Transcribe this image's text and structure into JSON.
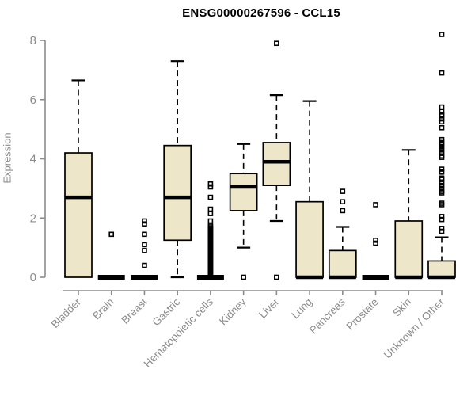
{
  "chart_data": {
    "type": "boxplot",
    "title": "ENSG00000267596 - CCL15",
    "ylabel": "Expression",
    "xlabel": "",
    "yticks": [
      0,
      2,
      4,
      6,
      8
    ],
    "ylim": [
      0,
      8.4
    ],
    "grid": false,
    "legend": "none",
    "categories": [
      "Bladder",
      "Brain",
      "Breast",
      "Gastric",
      "Hematopoietic cells",
      "Kidney",
      "Liver",
      "Lung",
      "Pancreas",
      "Prostate",
      "Skin",
      "Unknown / Other"
    ],
    "series": [
      {
        "name": "Bladder",
        "whisker_low": 0,
        "q1": 0,
        "median": 2.7,
        "q3": 4.2,
        "whisker_high": 6.65,
        "outliers": []
      },
      {
        "name": "Brain",
        "whisker_low": 0,
        "q1": 0,
        "median": 0,
        "q3": 0,
        "whisker_high": 0,
        "outliers": [
          1.45
        ]
      },
      {
        "name": "Breast",
        "whisker_low": 0,
        "q1": 0,
        "median": 0,
        "q3": 0,
        "whisker_high": 0,
        "outliers": [
          1.9,
          1.8,
          1.45,
          1.1,
          0.9,
          0.4
        ]
      },
      {
        "name": "Gastric",
        "whisker_low": 0,
        "q1": 1.25,
        "median": 2.7,
        "q3": 4.45,
        "whisker_high": 7.3,
        "outliers": []
      },
      {
        "name": "Hematopoietic cells",
        "whisker_low": 0,
        "q1": 0,
        "median": 0,
        "q3": 0,
        "whisker_high": 0,
        "outliers": [
          3.15,
          3.05,
          2.7,
          2.3,
          2.15,
          1.9,
          1.75,
          1.7,
          1.65,
          1.6,
          1.55,
          1.5,
          1.45,
          1.4,
          1.35,
          1.3,
          1.25,
          1.2,
          1.15,
          1.1,
          1.05,
          1.0,
          0.95,
          0.9,
          0.85,
          0.8,
          0.75,
          0.7,
          0.65,
          0.6,
          0.55,
          0.5,
          0.45,
          0.4,
          0.35,
          0.3,
          0.25,
          0.2,
          0.15,
          0.1,
          0.05
        ]
      },
      {
        "name": "Kidney",
        "whisker_low": 1.0,
        "q1": 2.25,
        "median": 3.05,
        "q3": 3.5,
        "whisker_high": 4.5,
        "outliers": [
          0
        ]
      },
      {
        "name": "Liver",
        "whisker_low": 1.9,
        "q1": 3.1,
        "median": 3.9,
        "q3": 4.55,
        "whisker_high": 6.15,
        "outliers": [
          7.9,
          0
        ]
      },
      {
        "name": "Lung",
        "whisker_low": 0,
        "q1": 0,
        "median": 0,
        "q3": 2.55,
        "whisker_high": 5.95,
        "outliers": []
      },
      {
        "name": "Pancreas",
        "whisker_low": 0,
        "q1": 0,
        "median": 0,
        "q3": 0.9,
        "whisker_high": 1.7,
        "outliers": [
          2.9,
          2.55,
          2.25
        ]
      },
      {
        "name": "Prostate",
        "whisker_low": 0,
        "q1": 0,
        "median": 0,
        "q3": 0,
        "whisker_high": 0,
        "outliers": [
          2.45,
          1.25,
          1.15
        ]
      },
      {
        "name": "Skin",
        "whisker_low": 0,
        "q1": 0,
        "median": 0,
        "q3": 1.9,
        "whisker_high": 4.3,
        "outliers": []
      },
      {
        "name": "Unknown / Other",
        "whisker_low": 0,
        "q1": 0,
        "median": 0,
        "q3": 0.55,
        "whisker_high": 1.35,
        "outliers": [
          8.2,
          6.9,
          5.75,
          5.6,
          5.5,
          5.45,
          5.35,
          5.25,
          5.05,
          4.65,
          4.55,
          4.5,
          4.4,
          4.3,
          4.2,
          4.1,
          4.05,
          3.65,
          3.55,
          3.35,
          3.3,
          3.2,
          3.1,
          3.0,
          2.9,
          2.85,
          2.5,
          2.45,
          2.05,
          1.95,
          1.65,
          1.55
        ]
      }
    ],
    "colors": {
      "box_fill": "#EDE6C8",
      "box_stroke": "#000000",
      "median": "#000000",
      "outlier": "#000000",
      "axis": "#8C8C8C",
      "tick_label": "#8C8C8C",
      "title": "#000000",
      "background": "#FFFFFF"
    }
  }
}
